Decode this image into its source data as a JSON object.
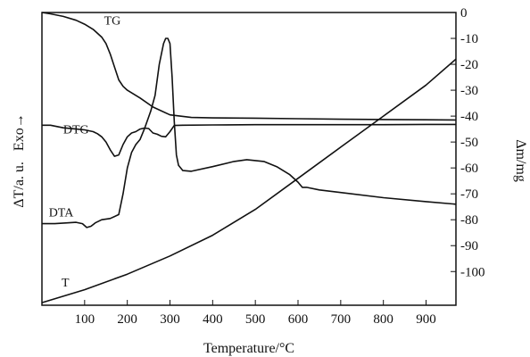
{
  "chart_data": {
    "type": "line",
    "xlabel": "Temperature/°C",
    "ylabel_left": "ΔT/a. u.   Exo→",
    "ylabel_right": "Δm/mg",
    "xlim": [
      0,
      970
    ],
    "ylim_right": [
      -113,
      0
    ],
    "x_ticks": [
      100,
      200,
      300,
      400,
      500,
      600,
      700,
      800,
      900
    ],
    "y_ticks_right": [
      0,
      -10,
      -20,
      -30,
      -40,
      -50,
      -60,
      -70,
      -80,
      -90,
      -100
    ],
    "y_tick_labels_right": [
      "0",
      "-10",
      "-20",
      "-30",
      "-40",
      "-50",
      "-60",
      "-70",
      "-80",
      "-90",
      "-100"
    ],
    "grid": false,
    "legend": "none",
    "series": [
      {
        "name": "TG",
        "axis": "right",
        "label_at": [
          165,
          -3
        ],
        "x": [
          0,
          20,
          50,
          80,
          100,
          120,
          140,
          150,
          160,
          170,
          180,
          190,
          200,
          230,
          260,
          300,
          350,
          400,
          500,
          600,
          700,
          800,
          900,
          970
        ],
        "y": [
          0,
          -0.5,
          -1.5,
          -3,
          -4.5,
          -6.5,
          -9.5,
          -12,
          -16,
          -21,
          -26,
          -28.5,
          -30,
          -33,
          -36.5,
          -39.5,
          -40.5,
          -40.7,
          -40.8,
          -41,
          -41.2,
          -41.3,
          -41.4,
          -41.5
        ]
      },
      {
        "name": "DTG",
        "axis": "right",
        "label_at": [
          80,
          -45
        ],
        "x": [
          0,
          20,
          50,
          80,
          100,
          120,
          130,
          140,
          150,
          160,
          170,
          180,
          190,
          200,
          210,
          220,
          230,
          240,
          250,
          260,
          270,
          280,
          290,
          300,
          310,
          330,
          400,
          500,
          600,
          700,
          800,
          900,
          970
        ],
        "y": [
          -43.5,
          -43.5,
          -44.5,
          -45,
          -45.3,
          -46,
          -46.8,
          -48,
          -50,
          -53,
          -55.5,
          -55,
          -51,
          -48,
          -46.5,
          -46,
          -45,
          -44.6,
          -44.8,
          -46.5,
          -47,
          -47.8,
          -48,
          -46,
          -43.6,
          -43.5,
          -43.4,
          -43.3,
          -43.3,
          -43.3,
          -43.3,
          -43.2,
          -43.2
        ]
      },
      {
        "name": "DTA",
        "axis": "right",
        "label_at": [
          45,
          -77
        ],
        "x": [
          0,
          30,
          60,
          80,
          95,
          105,
          115,
          125,
          140,
          160,
          180,
          190,
          200,
          210,
          220,
          230,
          240,
          255,
          265,
          275,
          285,
          290,
          295,
          300,
          305,
          310,
          315,
          320,
          330,
          350,
          400,
          450,
          480,
          520,
          550,
          580,
          600,
          610,
          620,
          650,
          700,
          800,
          900,
          970
        ],
        "y": [
          -81.5,
          -81.5,
          -81.2,
          -81,
          -81.5,
          -83,
          -82.5,
          -81.2,
          -80,
          -79.5,
          -78,
          -70,
          -60,
          -54,
          -51,
          -49,
          -45,
          -38,
          -32,
          -20,
          -12,
          -10,
          -10,
          -12,
          -25,
          -42,
          -55,
          -59,
          -61,
          -61.3,
          -59.5,
          -57.5,
          -56.8,
          -57.5,
          -59.5,
          -62.5,
          -65.5,
          -67.5,
          -67.5,
          -68.5,
          -69.5,
          -71.5,
          -73,
          -74
        ]
      },
      {
        "name": "T",
        "axis": "right",
        "label_at": [
          55,
          -104
        ],
        "x": [
          0,
          100,
          200,
          300,
          400,
          500,
          600,
          700,
          800,
          900,
          970
        ],
        "y": [
          -112,
          -107,
          -101,
          -94,
          -86,
          -76,
          -64,
          -52,
          -40,
          -28,
          -18
        ]
      }
    ]
  }
}
